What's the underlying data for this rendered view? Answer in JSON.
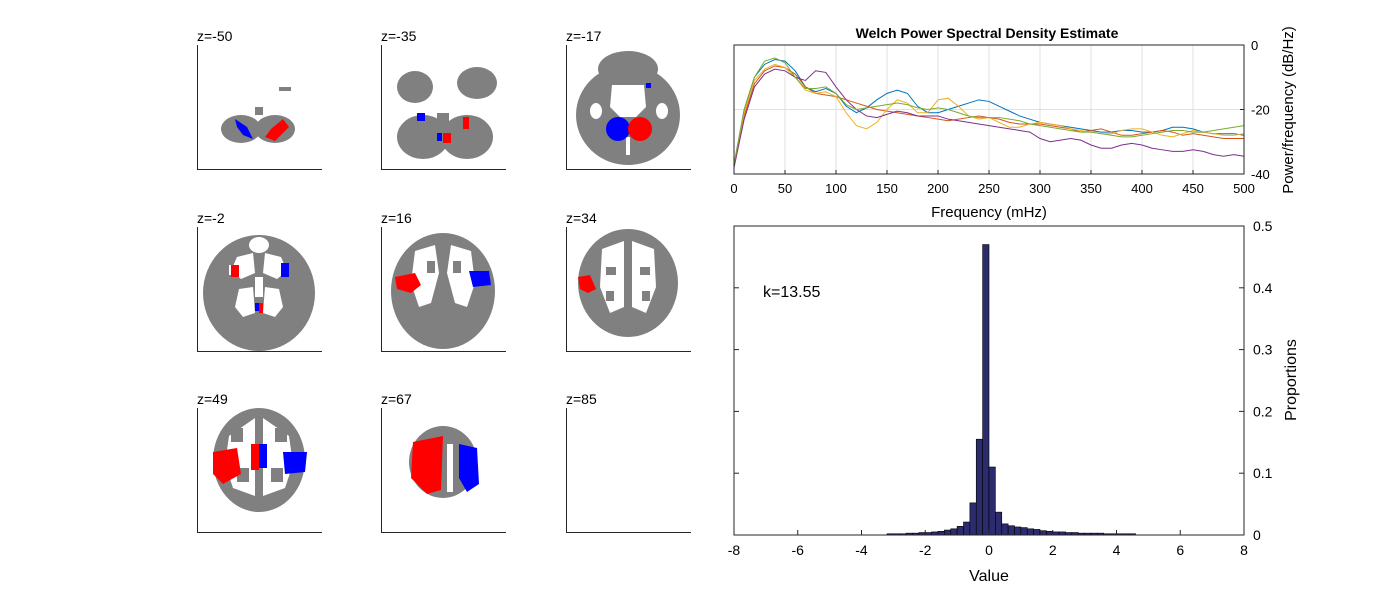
{
  "slices": [
    {
      "label": "z=-50",
      "shape": "cerebellum-low"
    },
    {
      "label": "z=-35",
      "shape": "cerebellum"
    },
    {
      "label": "z=-17",
      "shape": "temporal-base"
    },
    {
      "label": "z=-2",
      "shape": "axial-full"
    },
    {
      "label": "z=16",
      "shape": "axial-full"
    },
    {
      "label": "z=34",
      "shape": "axial-upper"
    },
    {
      "label": "z=49",
      "shape": "axial-upper"
    },
    {
      "label": "z=67",
      "shape": "vertex"
    },
    {
      "label": "z=85",
      "shape": "empty"
    }
  ],
  "colors": {
    "brain": "#808080",
    "positive": "#ff0000",
    "negative": "#0000ff",
    "hist_fill": "#2b2b6e",
    "grid": "#e0e0e0",
    "axis": "#262626"
  },
  "chart_data": [
    {
      "type": "line",
      "title": "Welch Power Spectral Density Estimate",
      "xlabel": "Frequency (mHz)",
      "ylabel": "Power/frequency (dB/Hz)",
      "xlim": [
        0,
        500
      ],
      "ylim": [
        -40,
        0
      ],
      "xticks": [
        0,
        50,
        100,
        150,
        200,
        250,
        300,
        350,
        400,
        450,
        500
      ],
      "yticks": [
        -40,
        -20,
        0
      ],
      "grid": true,
      "x": [
        0,
        10,
        20,
        30,
        40,
        50,
        60,
        70,
        80,
        90,
        100,
        110,
        120,
        130,
        140,
        150,
        160,
        170,
        180,
        190,
        200,
        210,
        220,
        230,
        240,
        250,
        260,
        270,
        280,
        290,
        300,
        310,
        320,
        330,
        340,
        350,
        360,
        370,
        380,
        390,
        400,
        410,
        420,
        430,
        440,
        450,
        460,
        470,
        480,
        490,
        500
      ],
      "series": [
        {
          "color": "#0072bd",
          "values": [
            -37,
            -20,
            -10,
            -6,
            -4.5,
            -5,
            -8,
            -13,
            -14.5,
            -13.5,
            -15,
            -19,
            -21,
            -19.5,
            -17,
            -15,
            -14,
            -15,
            -19,
            -21,
            -21,
            -20,
            -19,
            -18,
            -17,
            -17.5,
            -19,
            -20.5,
            -22,
            -23,
            -24,
            -24.5,
            -25,
            -25.5,
            -26,
            -26.5,
            -27,
            -27,
            -26.5,
            -26.5,
            -27,
            -27,
            -26.5,
            -25.5,
            -25.5,
            -26,
            -27,
            -27.5,
            -27.5,
            -27.5,
            -28
          ]
        },
        {
          "color": "#d95319",
          "values": [
            -38,
            -22,
            -12,
            -8,
            -6.5,
            -7,
            -9,
            -13,
            -15,
            -15.5,
            -16,
            -17,
            -18,
            -19,
            -20,
            -20.5,
            -21,
            -21.5,
            -22,
            -22.5,
            -23,
            -23.5,
            -23,
            -22.5,
            -22,
            -22.5,
            -23,
            -24,
            -24.5,
            -24.5,
            -24.5,
            -25,
            -25.5,
            -26,
            -27,
            -26.5,
            -26,
            -27,
            -28,
            -28,
            -27.5,
            -27,
            -26.5,
            -27,
            -28,
            -27.5,
            -28,
            -28.5,
            -29,
            -29,
            -29
          ]
        },
        {
          "color": "#edb120",
          "values": [
            -37,
            -21,
            -11,
            -7.5,
            -6,
            -7,
            -10,
            -14,
            -15,
            -14.5,
            -16,
            -21,
            -25,
            -26,
            -24,
            -20,
            -17,
            -18,
            -21,
            -21,
            -17,
            -16.5,
            -19,
            -22,
            -23,
            -22.5,
            -24,
            -25.5,
            -25.5,
            -24.5,
            -24,
            -24.5,
            -25,
            -26,
            -26.5,
            -27,
            -27.5,
            -27.5,
            -26.5,
            -26,
            -26,
            -27,
            -28,
            -28.5,
            -27.5,
            -26.5,
            -27,
            -27.5,
            -28,
            -28,
            -27.5
          ]
        },
        {
          "color": "#7e2f8e",
          "values": [
            -38,
            -23,
            -13,
            -9,
            -7.5,
            -8,
            -10,
            -11,
            -8,
            -8.5,
            -13,
            -17,
            -20,
            -22,
            -22.5,
            -21.5,
            -20.5,
            -21,
            -22,
            -22,
            -22,
            -23,
            -23.5,
            -24,
            -24.5,
            -25,
            -25.5,
            -26,
            -26.5,
            -27,
            -29,
            -30,
            -29.5,
            -29,
            -29.5,
            -31,
            -32,
            -32,
            -31,
            -30.5,
            -31,
            -32,
            -32.5,
            -33,
            -33,
            -32.5,
            -33,
            -34,
            -34.5,
            -34,
            -34.5
          ]
        },
        {
          "color": "#77ac30",
          "values": [
            -37,
            -20,
            -10,
            -5,
            -4,
            -5.5,
            -10,
            -13.5,
            -13.5,
            -13,
            -15,
            -18.5,
            -20,
            -19.5,
            -19,
            -18.5,
            -18,
            -18.5,
            -19.5,
            -20,
            -19.5,
            -20,
            -21,
            -22,
            -22.5,
            -22.5,
            -22.5,
            -23,
            -23.5,
            -24.5,
            -25,
            -25.5,
            -26,
            -26.5,
            -27,
            -27,
            -27.5,
            -28,
            -28.5,
            -28.5,
            -28,
            -27.5,
            -27,
            -26.5,
            -26.5,
            -27,
            -27,
            -26.5,
            -26,
            -25.5,
            -25
          ]
        }
      ]
    },
    {
      "type": "bar",
      "xlabel": "Value",
      "ylabel": "Proportions",
      "xlim": [
        -8,
        8
      ],
      "ylim": [
        0,
        0.5
      ],
      "xticks": [
        -8,
        -6,
        -4,
        -2,
        0,
        2,
        4,
        6,
        8
      ],
      "yticks": [
        0,
        0.1,
        0.2,
        0.3,
        0.4,
        0.5
      ],
      "grid": false,
      "annotation": "k=13.55",
      "bin_width": 0.2,
      "centers": [
        -3.1,
        -2.9,
        -2.7,
        -2.5,
        -2.3,
        -2.1,
        -1.9,
        -1.7,
        -1.5,
        -1.3,
        -1.1,
        -0.9,
        -0.7,
        -0.5,
        -0.3,
        -0.1,
        0.1,
        0.3,
        0.5,
        0.7,
        0.9,
        1.1,
        1.3,
        1.5,
        1.7,
        1.9,
        2.1,
        2.3,
        2.5,
        2.7,
        2.9,
        3.1,
        3.3,
        3.5,
        3.7,
        3.9,
        4.1,
        4.3,
        4.5
      ],
      "values": [
        0.002,
        0.002,
        0.002,
        0.003,
        0.003,
        0.004,
        0.004,
        0.005,
        0.006,
        0.008,
        0.01,
        0.014,
        0.021,
        0.052,
        0.155,
        0.47,
        0.11,
        0.037,
        0.018,
        0.015,
        0.013,
        0.012,
        0.01,
        0.009,
        0.007,
        0.006,
        0.005,
        0.005,
        0.004,
        0.004,
        0.003,
        0.003,
        0.003,
        0.003,
        0.002,
        0.002,
        0.002,
        0.002,
        0.002
      ]
    }
  ]
}
